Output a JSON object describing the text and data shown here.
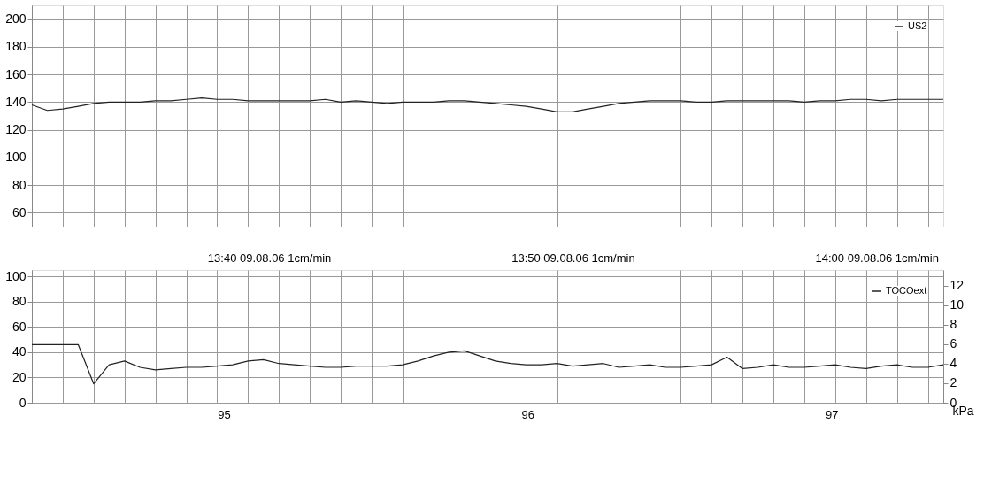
{
  "chart_data": [
    {
      "type": "line",
      "categories": [
        null,
        null,
        null,
        null,
        null,
        null,
        null,
        null,
        null,
        null,
        null,
        null,
        null,
        null,
        null,
        null,
        null,
        null,
        null,
        null,
        null,
        null,
        null,
        null,
        null,
        null,
        null,
        null,
        null,
        null,
        null,
        null,
        null,
        null,
        null,
        null,
        null,
        null,
        null,
        null,
        null,
        null,
        null,
        null,
        null,
        null,
        null,
        null,
        null,
        null,
        null,
        null,
        null,
        null,
        null,
        null,
        null,
        null,
        null,
        null
      ],
      "series": [
        {
          "name": "US2",
          "color": "#222222",
          "values": [
            138,
            134,
            135,
            137,
            139,
            140,
            140,
            140,
            141,
            141,
            142,
            143,
            142,
            142,
            141,
            141,
            141,
            141,
            141,
            142,
            140,
            141,
            140,
            139,
            140,
            140,
            140,
            141,
            141,
            140,
            139,
            138,
            137,
            135,
            133,
            133,
            135,
            137,
            139,
            140,
            141,
            141,
            141,
            140,
            140,
            141,
            141,
            141,
            141,
            141,
            140,
            141,
            141,
            142,
            142,
            141,
            142,
            142,
            142,
            142
          ]
        }
      ],
      "ylim": [
        50,
        210
      ],
      "yticks": [
        60,
        80,
        100,
        120,
        140,
        160,
        180,
        200
      ],
      "grid": true,
      "legend": "top right",
      "tick_labels": "y"
    },
    {
      "type": "line",
      "categories": [
        null,
        null,
        null,
        null,
        null,
        null,
        null,
        null,
        null,
        null,
        null,
        null,
        null,
        null,
        null,
        null,
        null,
        null,
        null,
        null,
        null,
        null,
        null,
        null,
        null,
        null,
        null,
        null,
        null,
        null,
        null,
        null,
        null,
        null,
        null,
        null,
        null,
        null,
        null,
        null,
        null,
        null,
        null,
        null,
        null,
        null,
        null,
        null,
        null,
        null,
        null,
        null,
        null,
        null,
        null,
        null,
        null,
        null,
        null,
        null
      ],
      "series": [
        {
          "name": "TOCOext",
          "color": "#222222",
          "values": [
            46,
            46,
            46,
            46,
            15,
            30,
            33,
            28,
            26,
            27,
            28,
            28,
            29,
            30,
            33,
            34,
            31,
            30,
            29,
            28,
            28,
            29,
            29,
            29,
            30,
            33,
            37,
            40,
            41,
            37,
            33,
            31,
            30,
            30,
            31,
            29,
            30,
            31,
            28,
            29,
            30,
            28,
            28,
            29,
            30,
            36,
            27,
            28,
            30,
            28,
            28,
            29,
            30,
            28,
            27,
            29,
            30,
            28,
            28,
            30
          ]
        }
      ],
      "ylim": [
        0,
        105
      ],
      "yticks": [
        0,
        20,
        40,
        60,
        80,
        100
      ],
      "y2lim": [
        0,
        13.6
      ],
      "y2ticks": [
        0,
        2,
        4,
        6,
        8,
        10,
        12
      ],
      "y2label": "kPa",
      "grid": true,
      "legend": "top right",
      "tick_labels": "y",
      "annotations": [
        "13:40 09.08.06 1cm/min",
        "13:50 09.08.06 1cm/min",
        "14:00 09.08.06 1cm/min",
        "95",
        "96",
        "97"
      ]
    }
  ]
}
